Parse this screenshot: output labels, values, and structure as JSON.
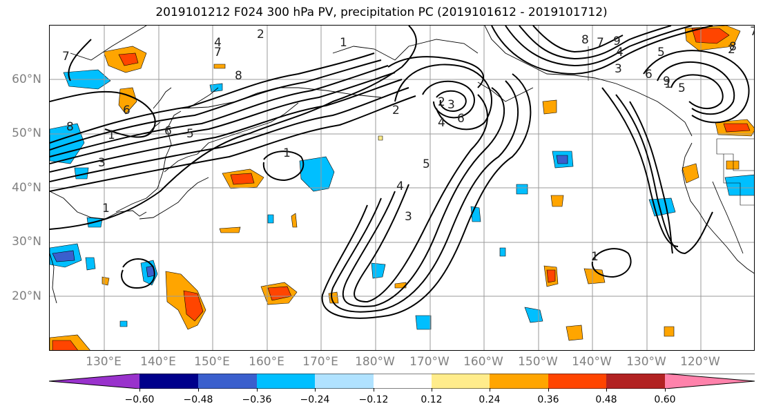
{
  "title": "2019101212 F024 300 hPa PV, precipitation PC (2019101612 - 2019101712)",
  "lat_labels": [
    "60°N",
    "50°N",
    "40°N",
    "30°N",
    "20°N"
  ],
  "lon_labels": [
    "130°E",
    "140°E",
    "150°E",
    "160°E",
    "170°E",
    "180°W",
    "170°W",
    "160°W",
    "150°W",
    "140°W",
    "130°W",
    "120°W"
  ],
  "colorbar": {
    "tick_labels": [
      "−0.60",
      "−0.48",
      "−0.36",
      "−0.24",
      "−0.12",
      "0.12",
      "0.24",
      "0.36",
      "0.48",
      "0.60"
    ],
    "colors": [
      "#9932CC",
      "#00008B",
      "#3A5FCD",
      "#00BFFF",
      "#B0E2FF",
      "#FFFFFF",
      "#FFEC8B",
      "#FFA500",
      "#FF4500",
      "#B22222",
      "#FF82AB"
    ]
  },
  "contour_labels": [
    "2",
    "4",
    "7",
    "8",
    "1",
    "6",
    "5",
    "3",
    "8",
    "7",
    "6",
    "5",
    "4",
    "3",
    "2",
    "1",
    "1",
    "1",
    "9",
    "8",
    "7",
    "4",
    "3",
    "6",
    "5",
    "2",
    "1",
    "2",
    "3",
    "4",
    "6",
    "7",
    "8",
    "9",
    "5",
    "1"
  ]
}
